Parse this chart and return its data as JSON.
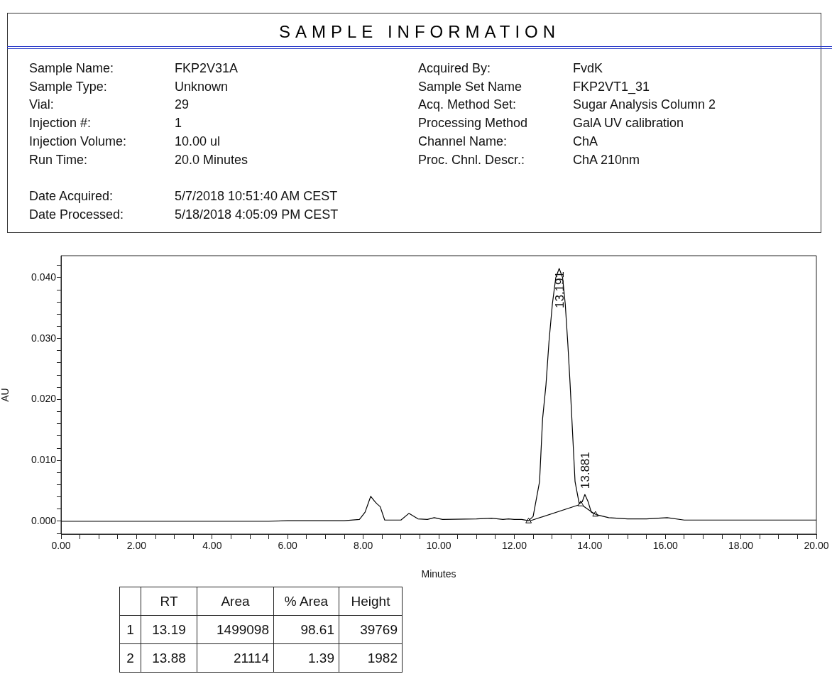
{
  "chart_data": [
    {
      "type": "other",
      "title": "SAMPLE INFORMATION",
      "cell_labels": [
        [
          "Sample Name:",
          "FKP2V31A",
          "Acquired By:",
          "FvdK"
        ],
        [
          "Sample Type:",
          "Unknown",
          "Sample Set Name",
          "FKP2VT1_31"
        ],
        [
          "Vial:",
          "29",
          "Acq. Method Set:",
          "Sugar Analysis Column 2"
        ],
        [
          "Injection #:",
          "1",
          "Processing Method",
          "GalA UV calibration"
        ],
        [
          "Injection Volume:",
          "10.00 ul",
          "Channel Name:",
          "ChA"
        ],
        [
          "Run Time:",
          "20.0 Minutes",
          "Proc. Chnl. Descr.:",
          "ChA 210nm"
        ],
        [
          null,
          null,
          null,
          null
        ],
        [
          "Date Acquired:",
          "5/7/2018 10:51:40 AM CEST",
          null,
          null
        ],
        [
          "Date Processed:",
          "5/18/2018 4:05:09 PM CEST",
          null,
          null
        ]
      ]
    },
    {
      "type": "line",
      "xlabel": "Minutes",
      "ylabel": "AU",
      "xlim": [
        0,
        20
      ],
      "ylim": [
        -0.0021,
        0.0436
      ],
      "xticks": [
        {
          "value": 0,
          "label": "0.00"
        },
        {
          "value": 0.5,
          "label": null
        },
        {
          "value": 1,
          "label": null
        },
        {
          "value": 1.5,
          "label": null
        },
        {
          "value": 2,
          "label": "2.00"
        },
        {
          "value": 2.5,
          "label": null
        },
        {
          "value": 3,
          "label": null
        },
        {
          "value": 3.5,
          "label": null
        },
        {
          "value": 4,
          "label": "4.00"
        },
        {
          "value": 4.5,
          "label": null
        },
        {
          "value": 5,
          "label": null
        },
        {
          "value": 5.5,
          "label": null
        },
        {
          "value": 6,
          "label": "6.00"
        },
        {
          "value": 6.5,
          "label": null
        },
        {
          "value": 7,
          "label": null
        },
        {
          "value": 7.5,
          "label": null
        },
        {
          "value": 8,
          "label": "8.00"
        },
        {
          "value": 8.5,
          "label": null
        },
        {
          "value": 9,
          "label": null
        },
        {
          "value": 9.5,
          "label": null
        },
        {
          "value": 10,
          "label": "10.00"
        },
        {
          "value": 10.5,
          "label": null
        },
        {
          "value": 11,
          "label": null
        },
        {
          "value": 11.5,
          "label": null
        },
        {
          "value": 12,
          "label": "12.00"
        },
        {
          "value": 12.5,
          "label": null
        },
        {
          "value": 13,
          "label": null
        },
        {
          "value": 13.5,
          "label": null
        },
        {
          "value": 14,
          "label": "14.00"
        },
        {
          "value": 14.5,
          "label": null
        },
        {
          "value": 15,
          "label": null
        },
        {
          "value": 15.5,
          "label": null
        },
        {
          "value": 16,
          "label": "16.00"
        },
        {
          "value": 16.5,
          "label": null
        },
        {
          "value": 17,
          "label": null
        },
        {
          "value": 17.5,
          "label": null
        },
        {
          "value": 18,
          "label": "18.00"
        },
        {
          "value": 18.5,
          "label": null
        },
        {
          "value": 19,
          "label": null
        },
        {
          "value": 19.5,
          "label": null
        },
        {
          "value": 20,
          "label": "20.00"
        }
      ],
      "yticks": [
        {
          "value": -0.002,
          "label": null
        },
        {
          "value": 0,
          "label": "0.000"
        },
        {
          "value": 0.002,
          "label": null
        },
        {
          "value": 0.004,
          "label": null
        },
        {
          "value": 0.006,
          "label": null
        },
        {
          "value": 0.008,
          "label": null
        },
        {
          "value": 0.01,
          "label": "0.010"
        },
        {
          "value": 0.012,
          "label": null
        },
        {
          "value": 0.014,
          "label": null
        },
        {
          "value": 0.016,
          "label": null
        },
        {
          "value": 0.018,
          "label": null
        },
        {
          "value": 0.02,
          "label": "0.020"
        },
        {
          "value": 0.022,
          "label": null
        },
        {
          "value": 0.024,
          "label": null
        },
        {
          "value": 0.026,
          "label": null
        },
        {
          "value": 0.028,
          "label": null
        },
        {
          "value": 0.03,
          "label": "0.030"
        },
        {
          "value": 0.032,
          "label": null
        },
        {
          "value": 0.034,
          "label": null
        },
        {
          "value": 0.036,
          "label": null
        },
        {
          "value": 0.038,
          "label": null
        },
        {
          "value": 0.04,
          "label": "0.040"
        },
        {
          "value": 0.042,
          "label": null
        }
      ],
      "marker": "none",
      "line_style": "solid",
      "legend": false,
      "series": [
        {
          "color": "#000000",
          "x": [
            0,
            0.5,
            1,
            2,
            3,
            4,
            5,
            5.5,
            6,
            7,
            7.5,
            7.9,
            8.05,
            8.2,
            8.3,
            8.36,
            8.45,
            8.57,
            9.0,
            9.21,
            9.45,
            9.7,
            9.88,
            10.1,
            11,
            11.4,
            11.7,
            11.85,
            12.0,
            12.2,
            12.38,
            12.5,
            12.67,
            12.75,
            12.84,
            12.92,
            13.01,
            13.1,
            13.19,
            13.28,
            13.35,
            13.42,
            13.48,
            13.61,
            13.72,
            13.8,
            13.87,
            13.95,
            14.04,
            14.17,
            14.5,
            15,
            15.5,
            16.05,
            16.5,
            17,
            18,
            19,
            20
          ],
          "values": [
            0,
            0,
            0,
            0,
            0,
            0,
            0,
            0,
            0.0001,
            0.0001,
            0.0001,
            0.0003,
            0.0015,
            0.0041,
            0.0033,
            0.0029,
            0.0024,
            0.0002,
            0.0002,
            0.0013,
            0.0004,
            0.0003,
            0.0006,
            0.0003,
            0.0004,
            0.0005,
            0.0003,
            0.0004,
            0.0003,
            0.0003,
            0.0001,
            0.0008,
            0.0065,
            0.0168,
            0.0224,
            0.0295,
            0.0357,
            0.04,
            0.0415,
            0.04,
            0.0357,
            0.029,
            0.0224,
            0.0065,
            0.0029,
            0.0032,
            0.0044,
            0.0033,
            0.0015,
            0.0011,
            0.0006,
            0.0004,
            0.0004,
            0.0006,
            0.0002,
            0.0002,
            0.0002,
            0.0002,
            0.0002
          ]
        },
        {
          "color": "#000000",
          "marker": "triangle",
          "x": [
            12.38,
            13.76,
            14.15
          ],
          "values": [
            0,
            0.0028,
            0.0011
          ]
        }
      ],
      "annotations": [
        {
          "text": "13.191",
          "x": 13.191,
          "y": 0.0415
        },
        {
          "text": "13.881",
          "x": 13.881,
          "y": 0.0044
        }
      ]
    },
    {
      "type": "other",
      "categories": [
        null,
        "RT",
        "Area",
        "% Area",
        "Height"
      ],
      "cell_labels": [
        [
          "1",
          "13.19",
          "1499098",
          "98.61",
          "39769"
        ],
        [
          "2",
          "13.88",
          "21114",
          "1.39",
          "1982"
        ]
      ]
    }
  ]
}
